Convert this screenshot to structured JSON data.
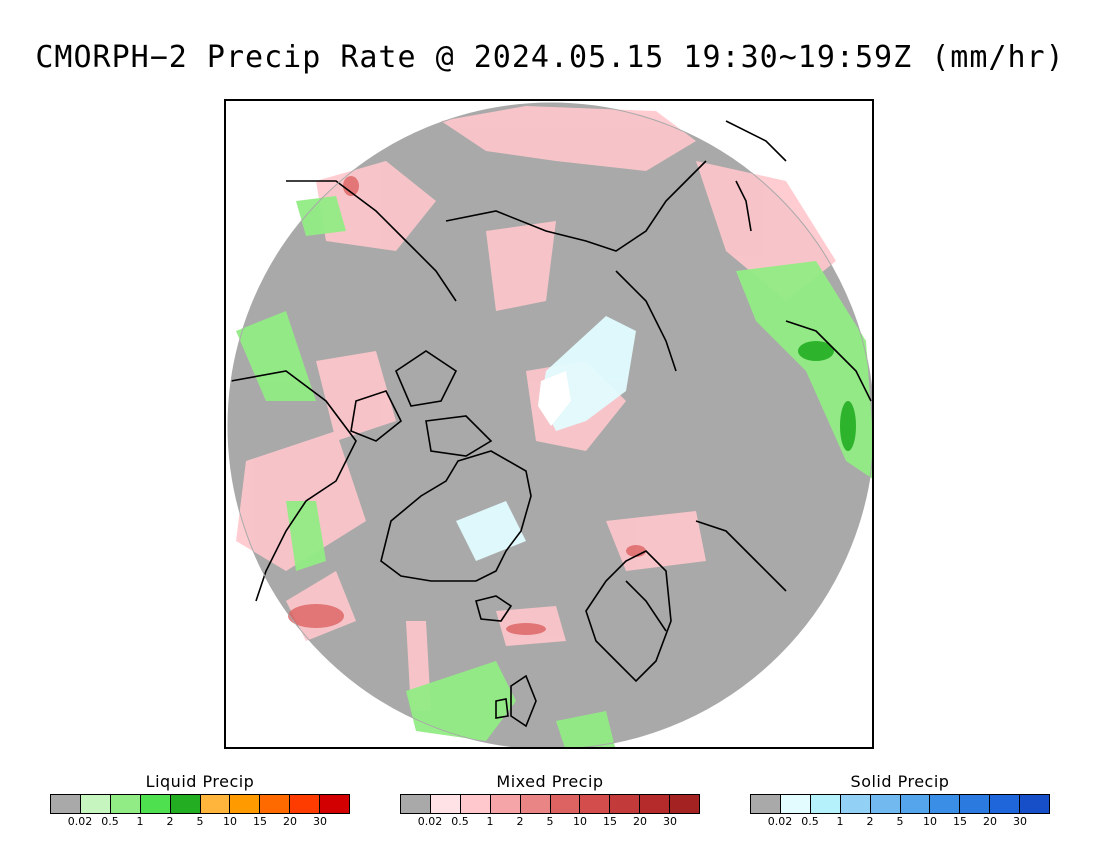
{
  "title": "CMORPH−2 Precip Rate @ 2024.05.15 19:30~19:59Z (mm/hr)",
  "colors": {
    "no_precip": "#a9a9a9",
    "land_outline": "#000000",
    "ocean_background": "#ffffff"
  },
  "legends": [
    {
      "id": "liquid",
      "title": "Liquid Precip",
      "colors": [
        "#a9a9a9",
        "#c6f5c0",
        "#92ec85",
        "#4fe04f",
        "#22ad22",
        "#ffb43c",
        "#ff9a00",
        "#ff6a00",
        "#ff3c00",
        "#d20000"
      ],
      "ticks": [
        "0.02",
        "0.5",
        "1",
        "2",
        "5",
        "10",
        "15",
        "20",
        "30"
      ]
    },
    {
      "id": "mixed",
      "title": "Mixed Precip",
      "colors": [
        "#a9a9a9",
        "#ffe2e6",
        "#ffc8cc",
        "#f5a5a8",
        "#ea8585",
        "#dd6262",
        "#d34d4d",
        "#c33a3a",
        "#b52a2a",
        "#a52222"
      ],
      "ticks": [
        "0.02",
        "0.5",
        "1",
        "2",
        "5",
        "10",
        "15",
        "20",
        "30"
      ]
    },
    {
      "id": "solid",
      "title": "Solid Precip",
      "colors": [
        "#a9a9a9",
        "#e2fcff",
        "#b4f1fa",
        "#92d0f5",
        "#72b9f0",
        "#54a5ec",
        "#3b8ee6",
        "#2a7ae0",
        "#1f66da",
        "#174fc8"
      ],
      "ticks": [
        "0.02",
        "0.5",
        "1",
        "2",
        "5",
        "10",
        "15",
        "20",
        "30"
      ]
    }
  ]
}
